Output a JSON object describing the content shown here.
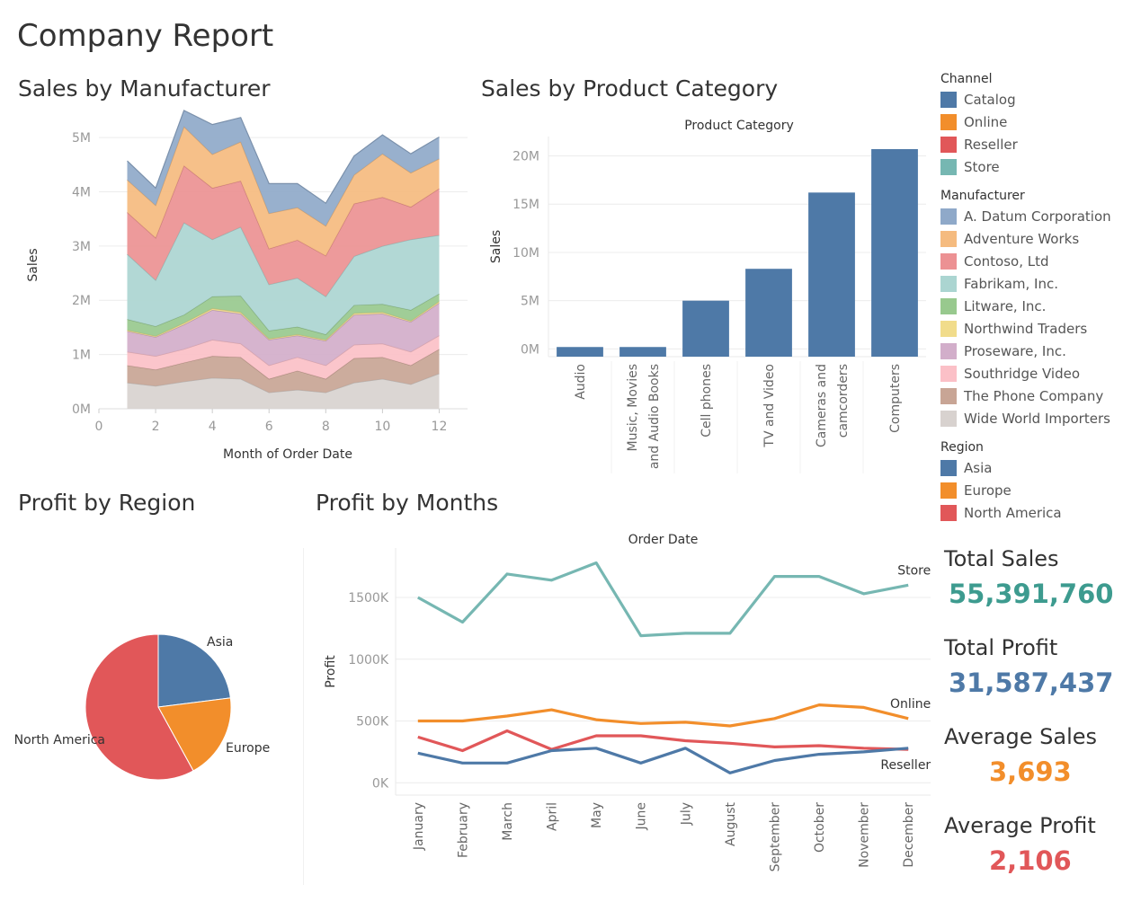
{
  "page_title": "Company Report",
  "sections": {
    "manufacturer": "Sales by Manufacturer",
    "category": "Sales by Product Category",
    "region": "Profit by Region",
    "months": "Profit by Months"
  },
  "colors": {
    "Catalog": "#4e79a7",
    "Online": "#f28e2b",
    "Reseller": "#e15759",
    "Store": "#76b7b2",
    "A. Datum Corporation": "#8fa9c9",
    "Adventure Works": "#f5bb7f",
    "Contoso, Ltd": "#ec9193",
    "Fabrikam, Inc.": "#abd5d1",
    "Litware, Inc.": "#98c98e",
    "Northwind Traders": "#f1dc8b",
    "Proseware, Inc.": "#d2aeca",
    "Southridge Video": "#fbc0c7",
    "The Phone Company": "#c8a595",
    "Wide World Importers": "#d8d2cf",
    "Asia": "#4e79a7",
    "Europe": "#f28e2b",
    "North America": "#e15759",
    "axis": "#888888",
    "grid": "#ececec",
    "kpi_sales": "#3d9b8f",
    "kpi_profit": "#4e79a7",
    "kpi_avg_sales": "#f28e2b",
    "kpi_avg_profit": "#e15759"
  },
  "legends": [
    {
      "title": "Channel",
      "items": [
        "Catalog",
        "Online",
        "Reseller",
        "Store"
      ]
    },
    {
      "title": "Manufacturer",
      "items": [
        "A. Datum Corporation",
        "Adventure Works",
        "Contoso, Ltd",
        "Fabrikam, Inc.",
        "Litware, Inc.",
        "Northwind Traders",
        "Proseware, Inc.",
        "Southridge Video",
        "The Phone Company",
        "Wide World Importers"
      ]
    },
    {
      "title": "Region",
      "items": [
        "Asia",
        "Europe",
        "North America"
      ]
    }
  ],
  "kpis": [
    {
      "label": "Total Sales",
      "value": "55,391,760",
      "color": "kpi_sales"
    },
    {
      "label": "Total Profit",
      "value": "31,587,437",
      "color": "kpi_profit"
    },
    {
      "label": "Average Sales",
      "value": "3,693",
      "color": "kpi_avg_sales"
    },
    {
      "label": "Average Profit",
      "value": "2,106",
      "color": "kpi_avg_profit"
    }
  ],
  "chart_data": [
    {
      "id": "manufacturer",
      "type": "area",
      "stacked": true,
      "title": "",
      "xlabel": "Month of Order Date",
      "ylabel": "Sales",
      "xlim": [
        0,
        13
      ],
      "ylim": [
        0,
        5.3
      ],
      "xticks": [
        0,
        2,
        4,
        6,
        8,
        10,
        12
      ],
      "yticks": [
        0,
        1,
        2,
        3,
        4,
        5
      ],
      "ytick_labels": [
        "0M",
        "1M",
        "2M",
        "3M",
        "4M",
        "5M"
      ],
      "y_unit": "M",
      "x": [
        1,
        2,
        3,
        4,
        5,
        6,
        7,
        8,
        9,
        10,
        11,
        12
      ],
      "series": [
        {
          "name": "Wide World Importers",
          "values": [
            0.48,
            0.42,
            0.5,
            0.57,
            0.55,
            0.3,
            0.35,
            0.3,
            0.48,
            0.55,
            0.45,
            0.65
          ]
        },
        {
          "name": "The Phone Company",
          "values": [
            0.32,
            0.3,
            0.35,
            0.4,
            0.4,
            0.25,
            0.35,
            0.25,
            0.45,
            0.4,
            0.35,
            0.45
          ]
        },
        {
          "name": "Southridge Video",
          "values": [
            0.25,
            0.25,
            0.25,
            0.3,
            0.25,
            0.25,
            0.25,
            0.25,
            0.25,
            0.25,
            0.25,
            0.25
          ]
        },
        {
          "name": "Proseware, Inc.",
          "values": [
            0.38,
            0.35,
            0.45,
            0.55,
            0.55,
            0.47,
            0.4,
            0.45,
            0.55,
            0.55,
            0.55,
            0.6
          ]
        },
        {
          "name": "Northwind Traders",
          "values": [
            0.02,
            0.02,
            0.03,
            0.03,
            0.03,
            0.02,
            0.02,
            0.02,
            0.03,
            0.03,
            0.02,
            0.03
          ]
        },
        {
          "name": "Litware, Inc.",
          "values": [
            0.2,
            0.18,
            0.15,
            0.22,
            0.3,
            0.15,
            0.14,
            0.1,
            0.15,
            0.15,
            0.2,
            0.14
          ]
        },
        {
          "name": "Fabrikam, Inc.",
          "values": [
            1.2,
            0.85,
            1.7,
            1.05,
            1.27,
            0.85,
            0.9,
            0.7,
            0.9,
            1.07,
            1.3,
            1.08
          ]
        },
        {
          "name": "Contoso, Ltd",
          "values": [
            0.77,
            0.78,
            1.05,
            0.95,
            0.85,
            0.66,
            0.7,
            0.75,
            0.97,
            0.9,
            0.6,
            0.86
          ]
        },
        {
          "name": "Adventure Works",
          "values": [
            0.6,
            0.6,
            0.72,
            0.62,
            0.72,
            0.65,
            0.6,
            0.55,
            0.53,
            0.8,
            0.63,
            0.55
          ]
        },
        {
          "name": "A. Datum Corporation",
          "values": [
            0.35,
            0.32,
            0.3,
            0.55,
            0.45,
            0.55,
            0.44,
            0.42,
            0.35,
            0.35,
            0.35,
            0.4
          ]
        }
      ]
    },
    {
      "id": "category",
      "type": "bar",
      "title": "Product Category",
      "xlabel": "",
      "ylabel": "Sales",
      "ylim": [
        -0.8,
        22
      ],
      "yticks": [
        0,
        5,
        10,
        15,
        20
      ],
      "ytick_labels": [
        "0M",
        "5M",
        "10M",
        "15M",
        "20M"
      ],
      "y_unit": "M",
      "categories": [
        [
          "Audio"
        ],
        [
          "Music, Movies",
          "and Audio Books"
        ],
        [
          "Cell phones"
        ],
        [
          "TV and Video"
        ],
        [
          "Cameras and",
          "camcorders"
        ],
        [
          "Computers"
        ]
      ],
      "values": [
        0.2,
        0.2,
        5.0,
        8.3,
        16.2,
        20.7
      ],
      "color": "Catalog"
    },
    {
      "id": "region",
      "type": "pie",
      "title": "",
      "categories": [
        "Asia",
        "Europe",
        "North America"
      ],
      "values": [
        23,
        19,
        58
      ]
    },
    {
      "id": "months",
      "type": "line",
      "title": "Order Date",
      "xlabel": "",
      "ylabel": "Profit",
      "ylim": [
        -100,
        1900
      ],
      "yticks": [
        0,
        500,
        1000,
        1500
      ],
      "ytick_labels": [
        "0K",
        "500K",
        "1000K",
        "1500K"
      ],
      "y_unit": "K",
      "categories": [
        "January",
        "February",
        "March",
        "April",
        "May",
        "June",
        "July",
        "August",
        "September",
        "October",
        "November",
        "December"
      ],
      "series": [
        {
          "name": "Store",
          "values": [
            1500,
            1300,
            1690,
            1640,
            1780,
            1190,
            1210,
            1210,
            1670,
            1670,
            1530,
            1600
          ]
        },
        {
          "name": "Online",
          "values": [
            500,
            500,
            540,
            590,
            510,
            480,
            490,
            460,
            520,
            630,
            610,
            520
          ]
        },
        {
          "name": "Reseller",
          "values": [
            370,
            260,
            420,
            270,
            380,
            380,
            340,
            320,
            290,
            300,
            280,
            270
          ]
        },
        {
          "name": "Catalog",
          "values": [
            240,
            160,
            160,
            260,
            280,
            160,
            280,
            80,
            180,
            230,
            250,
            280
          ]
        }
      ]
    }
  ]
}
